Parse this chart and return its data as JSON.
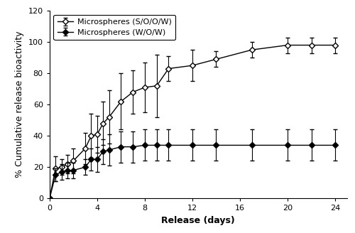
{
  "soow_x": [
    0,
    0.5,
    1,
    1.5,
    2,
    3,
    3.5,
    4,
    4.5,
    5,
    6,
    7,
    8,
    9,
    10,
    12,
    14,
    17,
    20,
    22,
    24
  ],
  "soow_y": [
    0,
    19,
    20,
    22,
    24,
    32,
    40,
    41,
    48,
    52,
    62,
    68,
    71,
    72,
    83,
    85,
    89,
    95,
    98,
    98,
    98
  ],
  "soow_yerr": [
    0,
    8,
    5,
    6,
    8,
    10,
    14,
    12,
    14,
    17,
    18,
    14,
    16,
    20,
    8,
    10,
    5,
    5,
    5,
    5,
    5
  ],
  "wow_x": [
    0,
    0.5,
    1,
    1.5,
    2,
    3,
    3.5,
    4,
    4.5,
    5,
    6,
    7,
    8,
    9,
    10,
    12,
    14,
    17,
    20,
    22,
    24
  ],
  "wow_y": [
    0,
    15,
    17,
    18,
    18,
    20,
    25,
    25,
    30,
    31,
    33,
    33,
    34,
    34,
    34,
    34,
    34,
    34,
    34,
    34,
    34
  ],
  "wow_yerr": [
    0,
    4,
    5,
    5,
    5,
    5,
    7,
    8,
    8,
    10,
    10,
    10,
    10,
    10,
    10,
    10,
    10,
    10,
    10,
    10,
    10
  ],
  "xlabel": "Release (days)",
  "ylabel": "% Cumulative release bioactivity",
  "xlim": [
    0,
    25
  ],
  "ylim": [
    0,
    120
  ],
  "yticks": [
    0,
    20,
    40,
    60,
    80,
    100,
    120
  ],
  "xticks": [
    0,
    4,
    8,
    12,
    16,
    20,
    24
  ],
  "legend_soow": "Microspheres (S/O/O/W)",
  "legend_wow": "Microspheres (W/O/W)",
  "line_color": "#000000",
  "bg_color": "#ffffff",
  "fontsize_label": 9,
  "fontsize_tick": 8,
  "fontsize_legend": 8
}
